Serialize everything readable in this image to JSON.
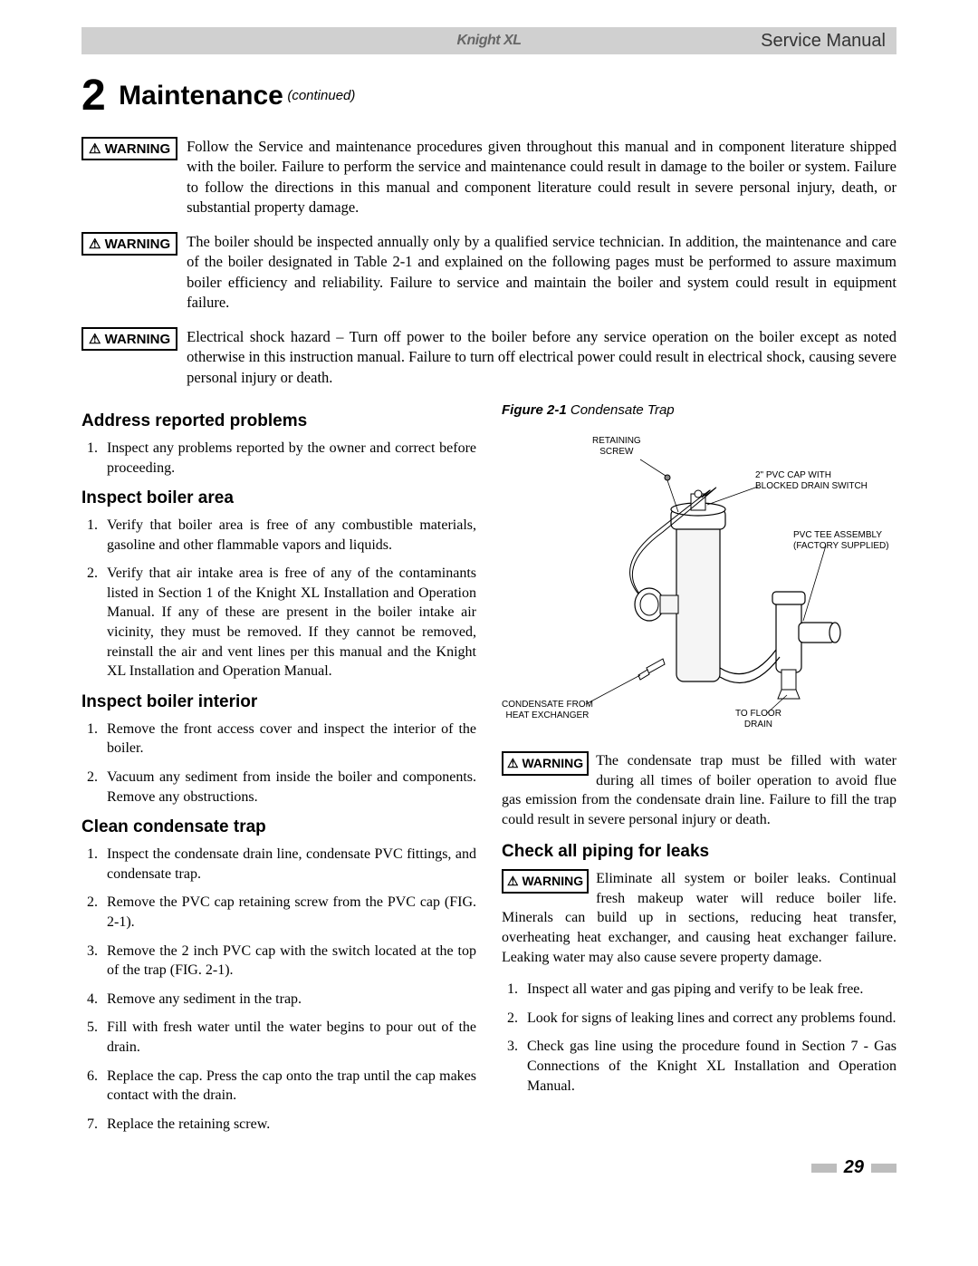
{
  "header": {
    "logo_text": "Knight XL",
    "manual_title": "Service Manual"
  },
  "section": {
    "number": "2",
    "name": "Maintenance",
    "continued": "(continued)"
  },
  "warnings_top": [
    {
      "label": "⚠ WARNING",
      "text": "Follow the Service and maintenance procedures given throughout this manual and in component literature shipped with the boiler.  Failure to perform the service and maintenance could result in damage to the boiler or system.  Failure to follow the directions in this manual and component literature could result in severe personal injury, death, or substantial property damage."
    },
    {
      "label": "⚠ WARNING",
      "text": "The boiler should be inspected annually only by a qualified service technician.  In addition, the maintenance and care of the boiler designated in Table 2-1 and explained on the following pages must be performed to assure maximum boiler efficiency and reliability.  Failure to service and maintain the boiler and system could result in equipment failure."
    },
    {
      "label": "⚠ WARNING",
      "text": "Electrical shock hazard – Turn off power to the boiler before any service operation on the boiler except as noted otherwise in this instruction manual.  Failure to turn off electrical power could result in electrical shock, causing severe personal injury or death."
    }
  ],
  "left_column": {
    "s1": {
      "title": "Address reported problems",
      "items": [
        "Inspect any problems reported by the owner and correct before proceeding."
      ]
    },
    "s2": {
      "title": "Inspect boiler area",
      "items": [
        "Verify that boiler area is free of any combustible materials, gasoline and other flammable vapors and liquids.",
        "Verify that air intake area is free of any of the contaminants listed in Section 1 of the Knight XL Installation and Operation Manual.  If any of these are present in the boiler intake air vicinity, they must be removed.  If they cannot be removed, reinstall the air and vent lines per this manual and the Knight XL Installation and Operation Manual."
      ]
    },
    "s3": {
      "title": "Inspect boiler interior",
      "items": [
        "Remove the front access cover and inspect the interior of the boiler.",
        "Vacuum any sediment from inside the boiler and components.  Remove any obstructions."
      ]
    },
    "s4": {
      "title": "Clean condensate trap",
      "items": [
        "Inspect the condensate drain line, condensate PVC fittings, and condensate trap.",
        "Remove the PVC cap retaining screw from the PVC cap (FIG. 2-1).",
        "Remove the 2 inch PVC cap with the switch located at the top of the trap (FIG. 2-1).",
        "Remove any sediment in the trap.",
        "Fill with fresh water until the water begins to pour out of the drain.",
        "Replace the cap.  Press the cap onto the trap until the cap makes contact with the drain.",
        "Replace the retaining screw."
      ]
    }
  },
  "right_column": {
    "figure": {
      "caption_bold": "Figure 2-1",
      "caption_italic": "Condensate Trap",
      "labels": {
        "retaining_screw": "RETAINING\nSCREW",
        "pvc_cap": "2\" PVC CAP WITH\nBLOCKED DRAIN SWITCH",
        "tee_assembly": "PVC TEE ASSEMBLY\n(FACTORY SUPPLIED)",
        "condensate_from": "CONDENSATE FROM\nHEAT EXCHANGER",
        "to_drain": "TO FLOOR\nDRAIN"
      }
    },
    "warning1": {
      "label": "⚠ WARNING",
      "text": "The condensate trap must be filled with water during all times of boiler operation to avoid flue gas emission from the condensate drain line.  Failure to fill the trap could result in severe personal injury or death."
    },
    "s5": {
      "title": "Check all piping for leaks"
    },
    "warning2": {
      "label": "⚠ WARNING",
      "text": "Eliminate all system or boiler leaks.  Continual fresh makeup water will reduce boiler life.  Minerals can build up in sections, reducing heat transfer, overheating heat exchanger, and causing heat exchanger failure.  Leaking water may also cause severe property damage."
    },
    "s5_items": [
      "Inspect all water and gas piping and verify to be leak free.",
      "Look for signs of leaking lines and correct any problems found.",
      "Check gas line using the procedure found in Section 7 - Gas Connections of the Knight XL Installation and Operation Manual."
    ]
  },
  "page_number": "29"
}
